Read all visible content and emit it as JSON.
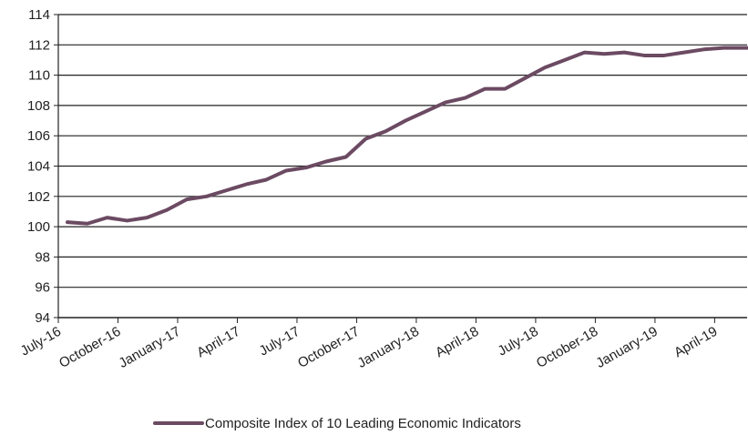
{
  "chart_data": {
    "type": "line",
    "title": "",
    "xlabel": "",
    "ylabel": "",
    "ylim": [
      94,
      114
    ],
    "yticks": [
      94,
      96,
      98,
      100,
      102,
      104,
      106,
      108,
      110,
      112,
      114
    ],
    "grid": "horizontal",
    "legend_position": "bottom-center",
    "line_color": "#6b4a62",
    "grid_color": "#222222",
    "x_tick_labels": [
      "July-16",
      "October-16",
      "January-17",
      "April-17",
      "July-17",
      "October-17",
      "January-18",
      "April-18",
      "July-18",
      "October-18",
      "January-19",
      "April-19"
    ],
    "categories": [
      "July-16",
      "August-16",
      "September-16",
      "October-16",
      "November-16",
      "December-16",
      "January-17",
      "February-17",
      "March-17",
      "April-17",
      "May-17",
      "June-17",
      "July-17",
      "August-17",
      "September-17",
      "October-17",
      "November-17",
      "December-17",
      "January-18",
      "February-18",
      "March-18",
      "April-18",
      "May-18",
      "June-18",
      "July-18",
      "August-18",
      "September-18",
      "October-18",
      "November-18",
      "December-18",
      "January-19",
      "February-19",
      "March-19",
      "April-19",
      "May-19",
      "June-19"
    ],
    "series": [
      {
        "name": "Composite Index of 10 Leading Economic Indicators",
        "values": [
          100.3,
          100.2,
          100.6,
          100.4,
          100.6,
          101.1,
          101.8,
          102.0,
          102.4,
          102.8,
          103.1,
          103.7,
          103.9,
          104.3,
          104.6,
          105.8,
          106.3,
          107.0,
          107.6,
          108.2,
          108.5,
          109.1,
          109.1,
          109.8,
          110.5,
          111.0,
          111.5,
          111.4,
          111.5,
          111.3,
          111.3,
          111.5,
          111.7,
          111.8,
          111.8,
          111.8
        ]
      }
    ]
  }
}
